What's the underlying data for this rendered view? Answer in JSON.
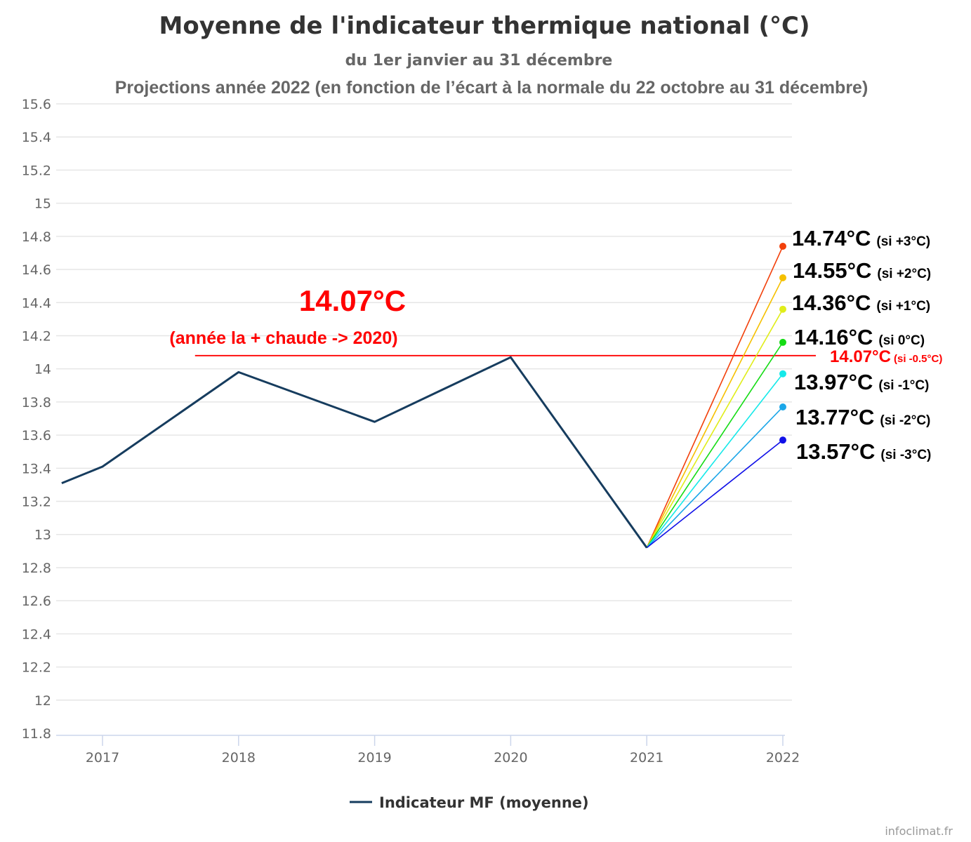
{
  "header": {
    "title": "Moyenne de l'indicateur thermique national (°C)",
    "subtitle": "du 1er janvier au 31 décembre",
    "subtitle2": "Projections année 2022 (en fonction de l’écart à la normale du 22 octobre au 31 décembre)"
  },
  "credit": "infoclimat.fr",
  "chart_data": {
    "type": "line",
    "title": "Moyenne de l'indicateur thermique national (°C)",
    "xlabel": "",
    "ylabel": "",
    "x_ticks": [
      "2017",
      "2018",
      "2019",
      "2020",
      "2021",
      "2022"
    ],
    "y_ticks": [
      "11.8",
      "12",
      "12.2",
      "12.4",
      "12.6",
      "12.8",
      "13",
      "13.2",
      "13.4",
      "13.6",
      "13.8",
      "14",
      "14.2",
      "14.4",
      "14.6",
      "14.8",
      "15",
      "15.2",
      "15.4",
      "15.6"
    ],
    "xlim": [
      2016.7,
      2022.0
    ],
    "ylim": [
      11.8,
      15.6
    ],
    "grid": true,
    "legend_position": "bottom",
    "series": [
      {
        "name": "Indicateur MF (moyenne)",
        "color": "#163c5e",
        "points": [
          {
            "x": 2016.7,
            "y": 13.31
          },
          {
            "x": 2017.0,
            "y": 13.41
          },
          {
            "x": 2018.0,
            "y": 13.98
          },
          {
            "x": 2019.0,
            "y": 13.68
          },
          {
            "x": 2020.0,
            "y": 14.07
          },
          {
            "x": 2021.0,
            "y": 12.92
          }
        ]
      }
    ],
    "reference_line": {
      "y": 14.08,
      "x_start": 2017.68,
      "color": "#ff0000",
      "label_value": "14.07°C",
      "label_text": "(année la + chaude -> 2020)"
    },
    "reference_label_right": {
      "value": "14.07°C",
      "condition": "(si -0.5°C)"
    },
    "projections": [
      {
        "value": 14.74,
        "label": "14.74°C",
        "condition": "(si +3°C)",
        "color": "#f2400b"
      },
      {
        "value": 14.55,
        "label": "14.55°C",
        "condition": "(si +2°C)",
        "color": "#f5c000"
      },
      {
        "value": 14.36,
        "label": "14.36°C",
        "condition": "(si +1°C)",
        "color": "#e0ed1a"
      },
      {
        "value": 14.16,
        "label": "14.16°C",
        "condition": "(si 0°C)",
        "color": "#14dc14"
      },
      {
        "value": 13.97,
        "label": "13.97°C",
        "condition": "(si -1°C)",
        "color": "#15e9e9"
      },
      {
        "value": 13.77,
        "label": "13.77°C",
        "condition": "(si -2°C)",
        "color": "#1aa6e8"
      },
      {
        "value": 13.57,
        "label": "13.57°C",
        "condition": "(si -3°C)",
        "color": "#1010e8"
      }
    ],
    "projection_start": {
      "x": 2021.0,
      "y": 12.92
    },
    "projection_end_x": 2022.0
  }
}
